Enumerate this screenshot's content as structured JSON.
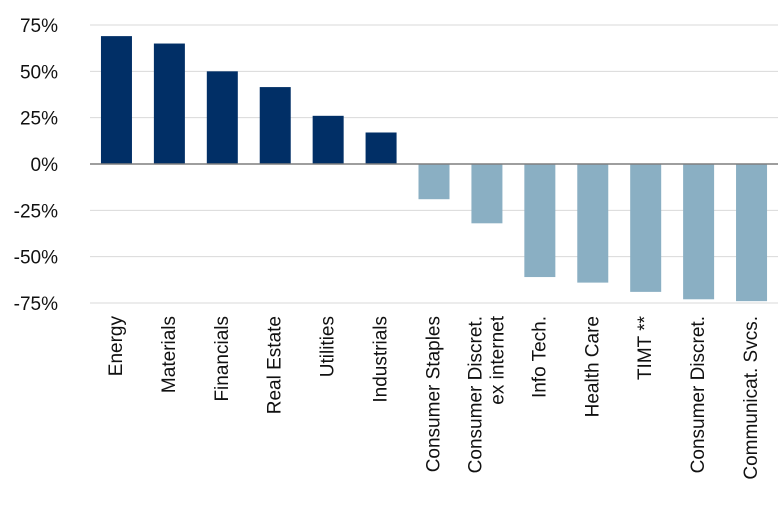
{
  "chart_data": {
    "type": "bar",
    "title": "",
    "xlabel": "",
    "ylabel": "",
    "ylim": [
      -75,
      75
    ],
    "yticks": [
      75,
      50,
      25,
      0,
      -25,
      -50,
      -75
    ],
    "ytick_labels": [
      "75%",
      "50%",
      "25%",
      "0%",
      "-25%",
      "-50%",
      "-75%"
    ],
    "grid": true,
    "categories": [
      [
        "Energy"
      ],
      [
        "Materials"
      ],
      [
        "Financials"
      ],
      [
        "Real Estate"
      ],
      [
        "Utilities"
      ],
      [
        "Industrials"
      ],
      [
        "Consumer Staples"
      ],
      [
        "Consumer Discret.",
        "ex internet"
      ],
      [
        "Info Tech."
      ],
      [
        "Health Care"
      ],
      [
        "TIMT **"
      ],
      [
        "Consumer Discret."
      ],
      [
        "Communicat. Svcs."
      ]
    ],
    "values": [
      69,
      65,
      50,
      41.5,
      26,
      17,
      -19,
      -32,
      -61,
      -64,
      -69,
      -73,
      -74
    ],
    "colors": {
      "positive": "#012f66",
      "negative": "#8aafc3"
    }
  }
}
